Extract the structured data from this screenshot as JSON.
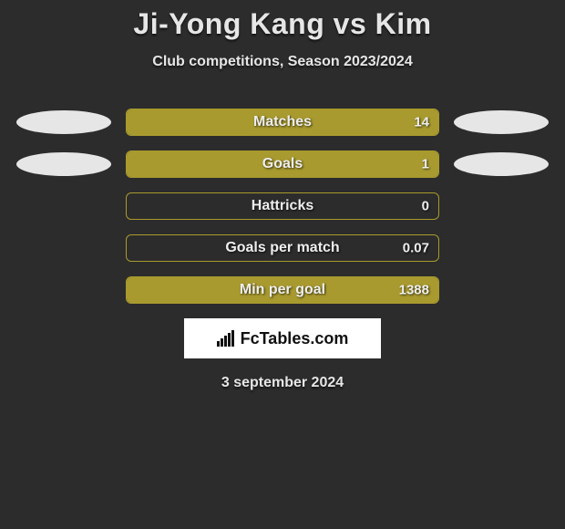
{
  "title": "Ji-Yong Kang vs Kim",
  "subtitle": "Club competitions, Season 2023/2024",
  "date": "3 september 2024",
  "logo_text": "FcTables.com",
  "colors": {
    "background": "#2c2c2c",
    "bar_fill": "#a89a2e",
    "bar_border": "#a89a2e",
    "ellipse": "#e6e6e6",
    "text": "#e6e6e6",
    "logo_bg": "#ffffff",
    "logo_text": "#111111"
  },
  "stats": [
    {
      "label": "Matches",
      "value": "14",
      "fill_pct": 100,
      "left_ellipse": true,
      "right_ellipse": true
    },
    {
      "label": "Goals",
      "value": "1",
      "fill_pct": 100,
      "left_ellipse": true,
      "right_ellipse": true
    },
    {
      "label": "Hattricks",
      "value": "0",
      "fill_pct": 0,
      "left_ellipse": false,
      "right_ellipse": false
    },
    {
      "label": "Goals per match",
      "value": "0.07",
      "fill_pct": 0,
      "left_ellipse": false,
      "right_ellipse": false
    },
    {
      "label": "Min per goal",
      "value": "1388",
      "fill_pct": 100,
      "left_ellipse": false,
      "right_ellipse": false
    }
  ]
}
